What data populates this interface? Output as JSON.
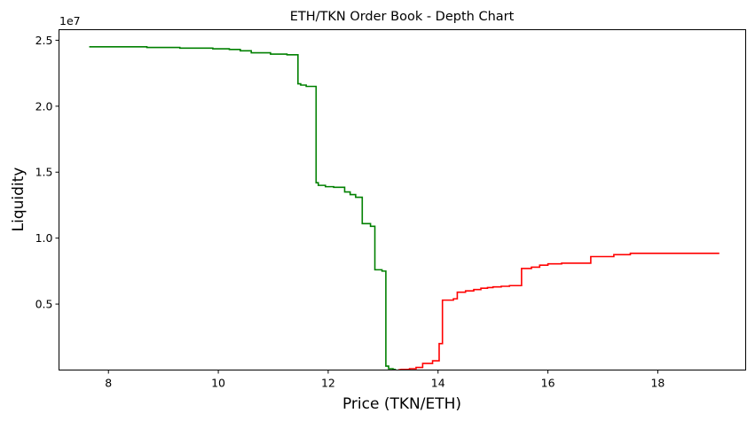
{
  "chart_data": {
    "type": "line",
    "title": "ETH/TKN Order Book - Depth Chart",
    "xlabel": "Price (TKN/ETH)",
    "ylabel": "Liquidity",
    "y_offset_text": "1e7",
    "xlim": [
      7.1,
      19.6
    ],
    "ylim": [
      0,
      25800000.0
    ],
    "x_ticks": [
      {
        "value": 8,
        "label": "8"
      },
      {
        "value": 10,
        "label": "10"
      },
      {
        "value": 12,
        "label": "12"
      },
      {
        "value": 14,
        "label": "14"
      },
      {
        "value": 16,
        "label": "16"
      },
      {
        "value": 18,
        "label": "18"
      }
    ],
    "y_ticks": [
      {
        "value": 5000000,
        "label": "0.5"
      },
      {
        "value": 10000000,
        "label": "1.0"
      },
      {
        "value": 15000000,
        "label": "1.5"
      },
      {
        "value": 20000000,
        "label": "2.0"
      },
      {
        "value": 25000000,
        "label": "2.5"
      }
    ],
    "grid": false,
    "series": [
      {
        "color": "#008000",
        "step": "post",
        "x": [
          7.65,
          8.7,
          9.3,
          9.9,
          10.2,
          10.4,
          10.6,
          10.95,
          11.25,
          11.45,
          11.5,
          11.6,
          11.78,
          11.82,
          11.95,
          12.1,
          12.3,
          12.4,
          12.5,
          12.62,
          12.77,
          12.85,
          12.98,
          13.05,
          13.1,
          13.18,
          13.22
        ],
        "y": [
          24500000,
          24450000,
          24400000,
          24350000,
          24300000,
          24200000,
          24050000,
          23950000,
          23900000,
          21700000,
          21600000,
          21500000,
          14200000,
          14000000,
          13900000,
          13850000,
          13500000,
          13300000,
          13100000,
          11100000,
          10900000,
          7600000,
          7500000,
          300000,
          100000,
          50000,
          20000
        ]
      },
      {
        "color": "#ff0000",
        "step": "post",
        "x": [
          13.28,
          13.33,
          13.48,
          13.6,
          13.72,
          13.9,
          14.02,
          14.08,
          14.28,
          14.35,
          14.5,
          14.65,
          14.78,
          14.9,
          15.0,
          15.15,
          15.3,
          15.52,
          15.7,
          15.85,
          16.0,
          16.25,
          16.78,
          17.2,
          17.5,
          19.12
        ],
        "y": [
          20000,
          50000,
          100000,
          200000,
          500000,
          700000,
          2000000,
          5300000,
          5400000,
          5900000,
          6000000,
          6100000,
          6200000,
          6250000,
          6300000,
          6350000,
          6400000,
          7700000,
          7800000,
          7950000,
          8050000,
          8100000,
          8600000,
          8750000,
          8850000,
          8850000
        ]
      }
    ]
  }
}
